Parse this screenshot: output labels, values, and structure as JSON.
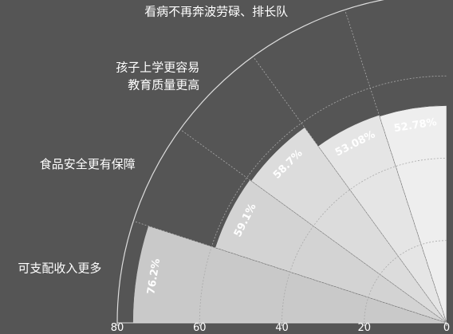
{
  "chart_data": {
    "type": "polar-bar",
    "categories": [
      "可支配收入更多",
      "食品安全更有保障",
      "孩子上学更容易\n教育质量更高",
      "看病不再奔波劳碌、排长队",
      null
    ],
    "values": [
      76.2,
      59.1,
      58.7,
      53.08,
      52.78
    ],
    "value_labels": [
      "76.2%",
      "59.1%",
      "58.7%",
      "53.08%",
      "52.78%"
    ],
    "colors": [
      "#c9c9c9",
      "#d3d3d3",
      "#dcdcdc",
      "#e5e5e5",
      "#eeeeee"
    ],
    "rlim": [
      0,
      80
    ],
    "rticks": [
      0,
      20,
      40,
      60,
      80
    ],
    "grid": true
  }
}
